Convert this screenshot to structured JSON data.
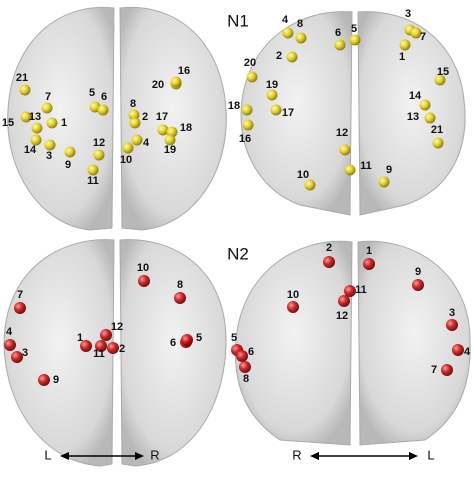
{
  "rows": [
    {
      "title": "N1",
      "views": [
        {
          "nodes": [
            "21",
            "7",
            "5",
            "6",
            "20",
            "16",
            "15",
            "13",
            "1",
            "14",
            "3",
            "9",
            "8",
            "2",
            "17",
            "18",
            "4",
            "19",
            "12",
            "10",
            "11"
          ]
        },
        {
          "nodes": [
            "4",
            "8",
            "6",
            "5",
            "3",
            "7",
            "1",
            "2",
            "20",
            "19",
            "15",
            "18",
            "17",
            "14",
            "13",
            "16",
            "21",
            "12",
            "11",
            "9",
            "10"
          ]
        }
      ]
    },
    {
      "title": "N2",
      "views": [
        {
          "nodes": [
            "10",
            "8",
            "7",
            "4",
            "3",
            "6",
            "5",
            "12",
            "1",
            "11",
            "2",
            "9"
          ]
        },
        {
          "nodes": [
            "2",
            "1",
            "9",
            "10",
            "11",
            "12",
            "3",
            "4",
            "5",
            "6",
            "8",
            "7"
          ]
        }
      ]
    }
  ],
  "orientation": [
    {
      "left": "L",
      "right": "R"
    },
    {
      "left": "R",
      "right": "L"
    }
  ]
}
